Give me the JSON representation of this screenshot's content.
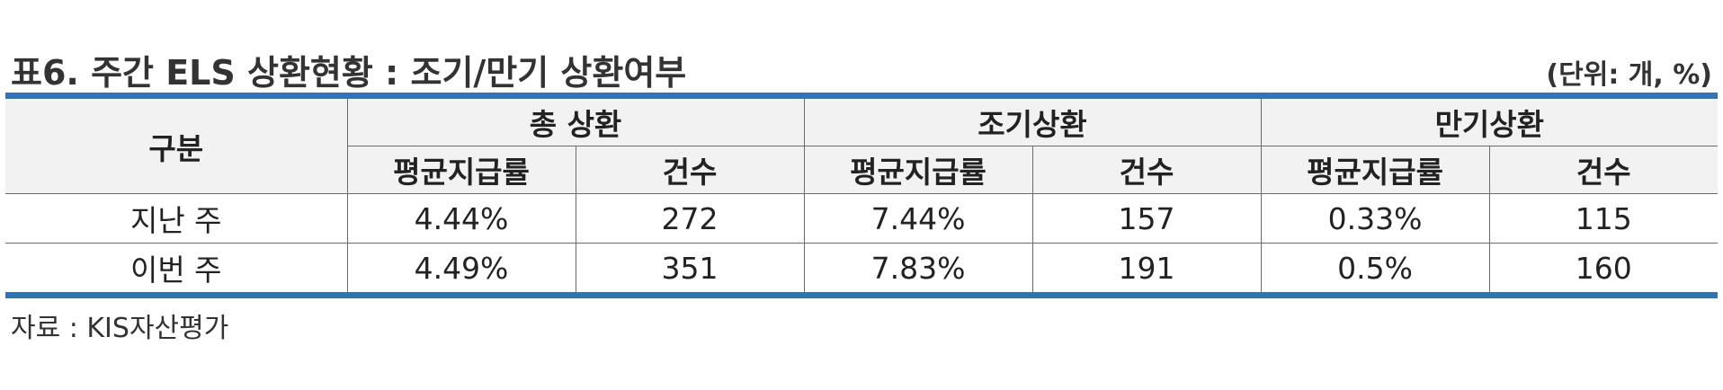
{
  "table": {
    "title": "표6. 주간 ELS 상환현황 : 조기/만기 상환여부",
    "unit_note": "(단위: 개, %)",
    "category_header": "구분",
    "group_headers": [
      "총 상환",
      "조기상환",
      "만기상환"
    ],
    "sub_headers": [
      "평균지급률",
      "건수",
      "평균지급률",
      "건수",
      "평균지급률",
      "건수"
    ],
    "rows": [
      {
        "label": "지난 주",
        "values": [
          "4.44%",
          "272",
          "7.44%",
          "157",
          "0.33%",
          "115"
        ]
      },
      {
        "label": "이번 주",
        "values": [
          "4.49%",
          "351",
          "7.83%",
          "191",
          "0.5%",
          "160"
        ]
      }
    ],
    "border_color": "#3572b0",
    "header_bg": "#f2f2f2"
  },
  "source": "자료 : KIS자산평가"
}
